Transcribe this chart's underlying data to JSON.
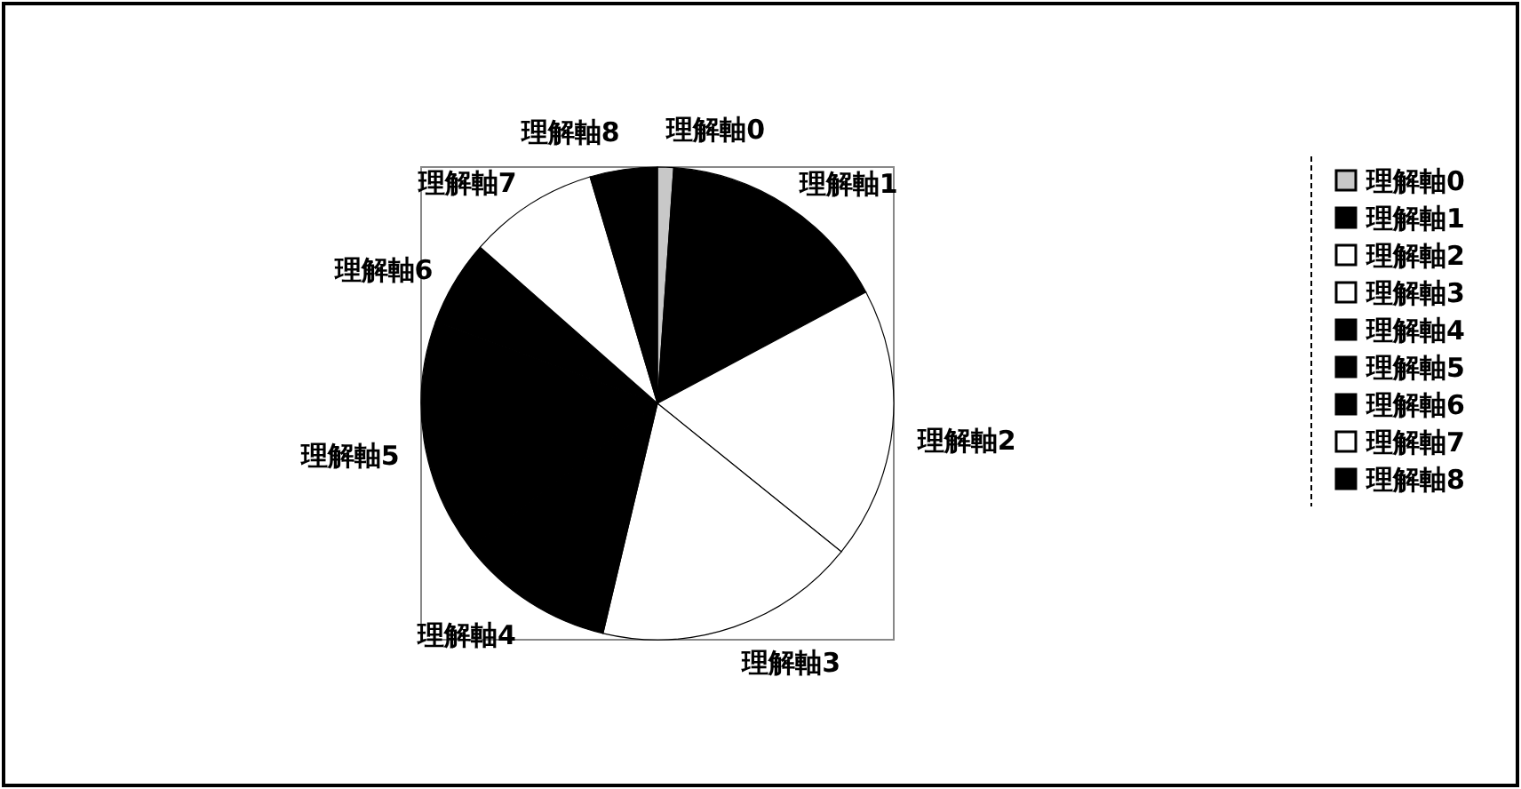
{
  "chart_data": {
    "type": "pie",
    "categories": [
      "理解軸0",
      "理解軸1",
      "理解軸2",
      "理解軸3",
      "理解軸4",
      "理解軸5",
      "理解軸6",
      "理解軸7",
      "理解軸8"
    ],
    "values": [
      1.1,
      16.1,
      18.6,
      17.9,
      10.8,
      16.1,
      5.9,
      8.9,
      4.6
    ],
    "colors": [
      "#c8c8c8",
      "#000000",
      "#ffffff",
      "#ffffff",
      "#000000",
      "#000000",
      "#000000",
      "#ffffff",
      "#000000"
    ],
    "legend": "right"
  }
}
